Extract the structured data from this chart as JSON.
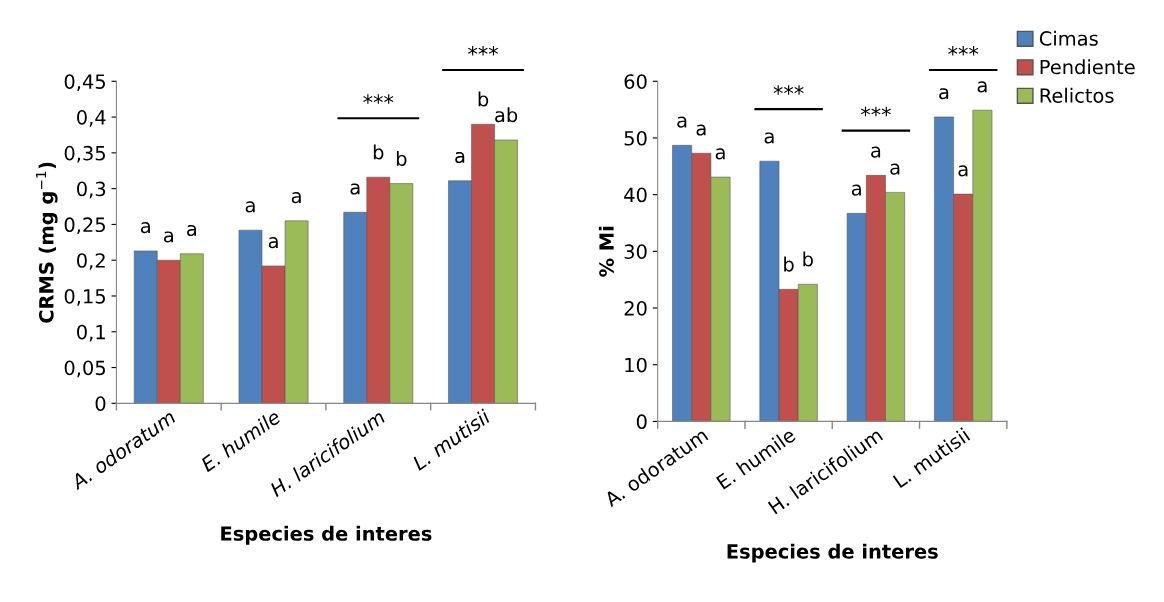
{
  "chart_data": [
    {
      "type": "bar",
      "xlabel": "Especies de interes",
      "ylabel": "CRMS (mg g$^{−1}$)",
      "categories": [
        "A. odoratum",
        "E. humile",
        "H. laricifolium",
        "L. mutisii"
      ],
      "series": [
        {
          "color": "#4f81bd",
          "values": [
            0.213,
            0.242,
            0.267,
            0.311
          ],
          "value_labels": [
            "a",
            "a",
            "a",
            "a"
          ]
        },
        {
          "color": "#c0504d",
          "values": [
            0.2,
            0.192,
            0.316,
            0.39
          ],
          "value_labels": [
            "a",
            "a",
            "b",
            "b"
          ]
        },
        {
          "color": "#9bbb59",
          "values": [
            0.209,
            0.255,
            0.307,
            0.368
          ],
          "value_labels": [
            "a",
            "a",
            "b",
            "ab"
          ]
        }
      ],
      "ylim": [
        0,
        0.45
      ],
      "yticks": [
        {
          "value": 0,
          "label": "0"
        },
        {
          "value": 0.05,
          "label": "0,05"
        },
        {
          "value": 0.1,
          "label": "0,1"
        },
        {
          "value": 0.15,
          "label": "0,15"
        },
        {
          "value": 0.2,
          "label": "0,2"
        },
        {
          "value": 0.25,
          "label": "0,25"
        },
        {
          "value": 0.3,
          "label": "0,3"
        },
        {
          "value": 0.35,
          "label": "0,35"
        },
        {
          "value": 0.4,
          "label": "0,4"
        },
        {
          "value": 0.45,
          "label": "0,45"
        }
      ],
      "annotations": [
        "***",
        "***"
      ],
      "grid": false,
      "legend": false
    },
    {
      "type": "bar",
      "xlabel": "Especies de interes",
      "ylabel": "% Mi",
      "categories": [
        "A. odoratum",
        "E. humile",
        "H. laricifolium",
        "L. mutisii"
      ],
      "series": [
        {
          "name": "Cimas",
          "color": "#4f81bd",
          "values": [
            48.7,
            45.9,
            36.7,
            53.7
          ],
          "value_labels": [
            "a",
            "a",
            "a",
            "a"
          ]
        },
        {
          "name": "Pendiente",
          "color": "#c0504d",
          "values": [
            47.3,
            23.3,
            43.4,
            40.1
          ],
          "value_labels": [
            "a",
            "b",
            "a",
            "a"
          ]
        },
        {
          "name": "Relictos",
          "color": "#9bbb59",
          "values": [
            43.1,
            24.2,
            40.4,
            54.9
          ],
          "value_labels": [
            "a",
            "b",
            "a",
            "a"
          ]
        }
      ],
      "ylim": [
        0,
        60
      ],
      "yticks": [
        0,
        10,
        20,
        30,
        40,
        50,
        60
      ],
      "annotations": [
        "***",
        "***",
        "***"
      ],
      "grid": false,
      "legend": "top right"
    }
  ]
}
